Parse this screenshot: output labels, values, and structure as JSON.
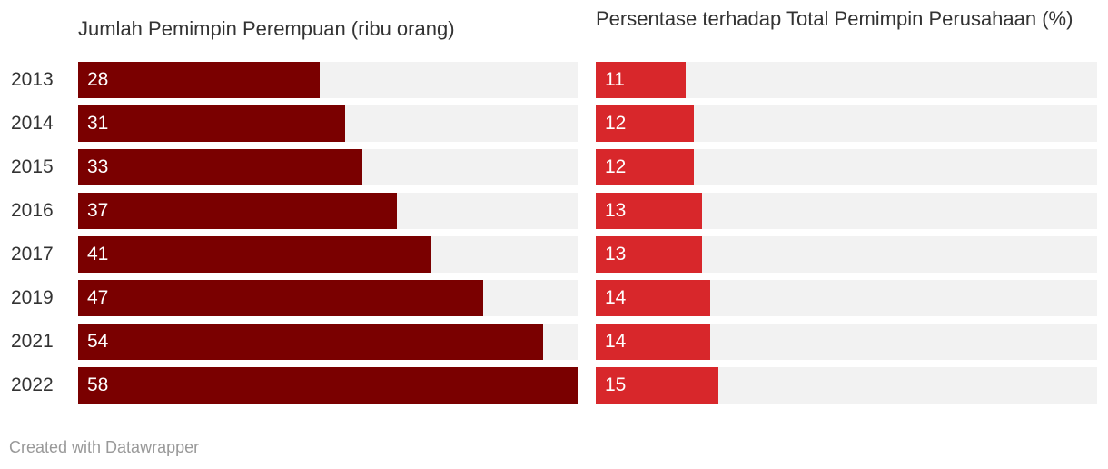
{
  "chart_data": [
    {
      "type": "bar",
      "orientation": "horizontal",
      "title": "Jumlah Pemimpin Perempuan (ribu orang)",
      "categories": [
        "2013",
        "2014",
        "2015",
        "2016",
        "2017",
        "2019",
        "2021",
        "2022"
      ],
      "values": [
        28,
        31,
        33,
        37,
        41,
        47,
        54,
        58
      ],
      "xlim": [
        0,
        58
      ],
      "color": "#7a0000",
      "background_color": "#f2f2f2"
    },
    {
      "type": "bar",
      "orientation": "horizontal",
      "title": "Persentase terhadap Total Pemimpin Perusahaan (%)",
      "categories": [
        "2013",
        "2014",
        "2015",
        "2016",
        "2017",
        "2019",
        "2021",
        "2022"
      ],
      "values": [
        11,
        12,
        12,
        13,
        13,
        14,
        14,
        15
      ],
      "value_labels": [
        "11",
        "12",
        "12",
        "13",
        "13",
        "14",
        "14",
        "15"
      ],
      "xlim": [
        0,
        61.5
      ],
      "color": "#d8272b",
      "background_color": "#f2f2f2"
    }
  ],
  "footer": "Created with Datawrapper"
}
